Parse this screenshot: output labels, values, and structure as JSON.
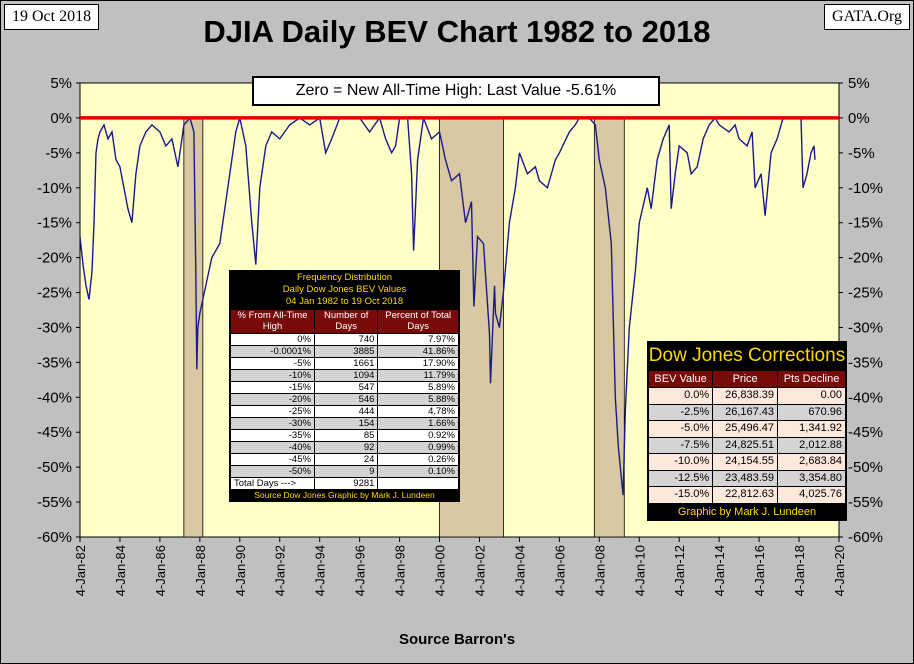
{
  "header": {
    "date": "19 Oct 2018",
    "source_site": "GATA.Org",
    "title": "DJIA Daily BEV Chart 1982 to 2018",
    "zero_label": "Zero = New All-Time High: Last Value  -5.61%",
    "x_axis_title": "Source Barron's"
  },
  "colors": {
    "plot_bg": "#ffffc8",
    "line": "#1a1a8c",
    "zero_line": "#e00000",
    "band_fill": "#d9c9a3",
    "outer_bg": "#c0c0c0"
  },
  "chart_data": {
    "type": "line",
    "title": "DJIA Daily BEV Chart 1982 to 2018",
    "xlabel": "Source Barron's",
    "ylabel": "",
    "ylim": [
      -60,
      5
    ],
    "xlim": [
      1982.0,
      2020.0
    ],
    "y_ticks": [
      "5%",
      "0%",
      "-5%",
      "-10%",
      "-15%",
      "-20%",
      "-25%",
      "-30%",
      "-35%",
      "-40%",
      "-45%",
      "-50%",
      "-55%",
      "-60%"
    ],
    "y_tick_values": [
      5,
      0,
      -5,
      -10,
      -15,
      -20,
      -25,
      -30,
      -35,
      -40,
      -45,
      -50,
      -55,
      -60
    ],
    "x_ticks": [
      "4-Jan-82",
      "4-Jan-84",
      "4-Jan-86",
      "4-Jan-88",
      "4-Jan-90",
      "4-Jan-92",
      "4-Jan-94",
      "4-Jan-96",
      "4-Jan-98",
      "4-Jan-00",
      "4-Jan-02",
      "4-Jan-04",
      "4-Jan-06",
      "4-Jan-08",
      "4-Jan-10",
      "4-Jan-12",
      "4-Jan-14",
      "4-Jan-16",
      "4-Jan-18",
      "4-Jan-20"
    ],
    "x_tick_values": [
      1982,
      1984,
      1986,
      1988,
      1990,
      1992,
      1994,
      1996,
      1998,
      2000,
      2002,
      2004,
      2006,
      2008,
      2010,
      2012,
      2014,
      2016,
      2018,
      2020
    ],
    "shaded_periods": [
      [
        1987.2,
        1988.15
      ],
      [
        2000.0,
        2003.2
      ],
      [
        2007.75,
        2009.25
      ]
    ],
    "reference_line": 0,
    "series": [
      {
        "name": "DJIA BEV",
        "x": [
          1982.0,
          1982.15,
          1982.3,
          1982.45,
          1982.6,
          1982.7,
          1982.8,
          1982.9,
          1983.0,
          1983.2,
          1983.4,
          1983.6,
          1983.8,
          1984.0,
          1984.2,
          1984.4,
          1984.6,
          1984.8,
          1985.0,
          1985.3,
          1985.6,
          1986.0,
          1986.3,
          1986.6,
          1986.9,
          1987.2,
          1987.5,
          1987.7,
          1987.8,
          1987.85,
          1987.9,
          1988.0,
          1988.3,
          1988.6,
          1989.0,
          1989.3,
          1989.6,
          1989.8,
          1990.0,
          1990.3,
          1990.6,
          1990.8,
          1991.0,
          1991.3,
          1991.6,
          1992.0,
          1992.5,
          1993.0,
          1993.5,
          1994.0,
          1994.3,
          1994.6,
          1995.0,
          1995.5,
          1996.0,
          1996.5,
          1997.0,
          1997.3,
          1997.6,
          1997.8,
          1998.0,
          1998.4,
          1998.6,
          1998.7,
          1998.9,
          1999.2,
          1999.6,
          2000.0,
          2000.3,
          2000.6,
          2001.0,
          2001.3,
          2001.6,
          2001.72,
          2001.9,
          2002.2,
          2002.5,
          2002.55,
          2002.75,
          2002.8,
          2003.0,
          2003.2,
          2003.5,
          2003.8,
          2004.0,
          2004.4,
          2004.8,
          2005.0,
          2005.4,
          2005.8,
          2006.0,
          2006.5,
          2006.8,
          2007.0,
          2007.5,
          2007.8,
          2008.0,
          2008.3,
          2008.6,
          2008.8,
          2008.95,
          2009.05,
          2009.19,
          2009.3,
          2009.5,
          2009.8,
          2010.0,
          2010.4,
          2010.6,
          2010.9,
          2011.2,
          2011.5,
          2011.6,
          2011.8,
          2012.0,
          2012.4,
          2012.6,
          2012.9,
          2013.2,
          2013.5,
          2013.8,
          2014.0,
          2014.5,
          2014.8,
          2015.0,
          2015.4,
          2015.65,
          2015.8,
          2016.1,
          2016.3,
          2016.6,
          2016.9,
          2017.2,
          2017.6,
          2018.0,
          2018.1,
          2018.2,
          2018.4,
          2018.6,
          2018.75,
          2018.8
        ],
        "values": [
          -17,
          -21,
          -24,
          -26,
          -22,
          -15,
          -5,
          -3,
          -2,
          -1,
          -3,
          -2,
          -6,
          -7,
          -10,
          -13,
          -15,
          -8,
          -4,
          -2,
          -1,
          -2,
          -4,
          -3,
          -7,
          -1,
          0,
          -2,
          -22,
          -36,
          -30,
          -28,
          -24,
          -20,
          -18,
          -12,
          -6,
          -2,
          0,
          -4,
          -15,
          -21,
          -10,
          -4,
          -2,
          -3,
          -1,
          0,
          -1,
          0,
          -5,
          -3,
          0,
          0,
          0,
          -2,
          0,
          -3,
          -5,
          -4,
          0,
          0,
          -8,
          -19,
          -6,
          0,
          -3,
          -2,
          -6,
          -9,
          -8,
          -15,
          -12,
          -27,
          -17,
          -18,
          -31,
          -38,
          -24,
          -28,
          -30,
          -25,
          -15,
          -10,
          -5,
          -8,
          -7,
          -9,
          -10,
          -6,
          -5,
          -2,
          -1,
          0,
          0,
          -1,
          -6,
          -10,
          -18,
          -40,
          -47,
          -50,
          -54,
          -42,
          -30,
          -22,
          -15,
          -10,
          -13,
          -6,
          -3,
          -1,
          -13,
          -8,
          -4,
          -5,
          -8,
          -7,
          -3,
          -1,
          0,
          -1,
          -2,
          -1,
          -3,
          -4,
          -2,
          -10,
          -8,
          -14,
          -5,
          -3,
          0,
          0,
          0,
          0,
          -10,
          -8,
          -5,
          -4,
          -6
        ]
      }
    ]
  },
  "frequency_table": {
    "title_lines": [
      "Frequency Distribution",
      "Daily Dow Jones BEV Values",
      "04 Jan 1982 to 19 Oct 2018"
    ],
    "headers": [
      "% From All-Time High",
      "Number of Days",
      "Percent of Total Days"
    ],
    "rows": [
      [
        "0%",
        "740",
        "7.97%"
      ],
      [
        "-0.0001%",
        "3885",
        "41.86%"
      ],
      [
        "-5%",
        "1661",
        "17.90%"
      ],
      [
        "-10%",
        "1094",
        "11.79%"
      ],
      [
        "-15%",
        "547",
        "5.89%"
      ],
      [
        "-20%",
        "546",
        "5.88%"
      ],
      [
        "-25%",
        "444",
        "4.78%"
      ],
      [
        "-30%",
        "154",
        "1.66%"
      ],
      [
        "-35%",
        "85",
        "0.92%"
      ],
      [
        "-40%",
        "92",
        "0.99%"
      ],
      [
        "-45%",
        "24",
        "0.26%"
      ],
      [
        "-50%",
        "9",
        "0.10%"
      ]
    ],
    "total_label": "Total Days --->",
    "total_value": "9281",
    "footer": "Source Dow Jones   Graphic by Mark J. Lundeen"
  },
  "corrections_table": {
    "title": "Dow Jones Corrections",
    "headers": [
      "BEV Value",
      "Price",
      "Pts Decline"
    ],
    "rows": [
      [
        "0.0%",
        "26,838.39",
        "0.00"
      ],
      [
        "-2.5%",
        "26,167.43",
        "670.96"
      ],
      [
        "-5.0%",
        "25,496.47",
        "1,341.92"
      ],
      [
        "-7.5%",
        "24,825.51",
        "2,012.88"
      ],
      [
        "-10.0%",
        "24,154.55",
        "2,683.84"
      ],
      [
        "-12.5%",
        "23,483.59",
        "3,354.80"
      ],
      [
        "-15.0%",
        "22,812.63",
        "4,025.76"
      ]
    ],
    "footer": "Graphic by Mark J. Lundeen"
  }
}
